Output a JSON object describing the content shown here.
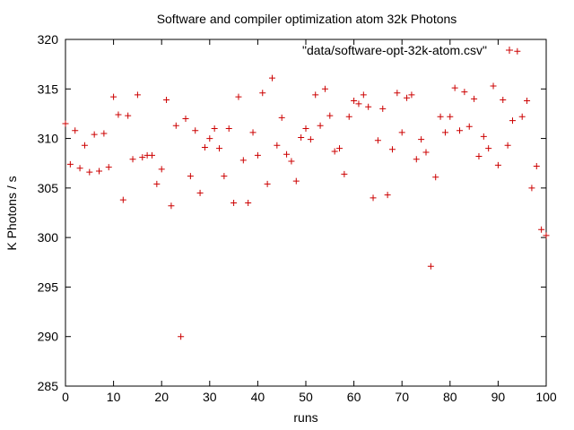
{
  "chart_data": {
    "type": "scatter",
    "title": "Software and compiler optimization atom 32k Photons",
    "xlabel": "runs",
    "ylabel": "K Photons / s",
    "xlim": [
      0,
      100
    ],
    "ylim": [
      285,
      320
    ],
    "x_ticks": [
      "0",
      "10",
      "20",
      "30",
      "40",
      "50",
      "60",
      "70",
      "80",
      "90",
      "100"
    ],
    "y_ticks": [
      "285",
      "290",
      "295",
      "300",
      "305",
      "310",
      "315",
      "320"
    ],
    "legend_position": "top-right",
    "grid": false,
    "colors": {
      "marker": "#cc0000",
      "axis": "#000000",
      "background": "#ffffff"
    },
    "series": [
      {
        "name": "\"data/software-opt-32k-atom.csv\"",
        "points": [
          [
            0,
            311.5
          ],
          [
            1,
            307.4
          ],
          [
            2,
            310.8
          ],
          [
            3,
            307.0
          ],
          [
            4,
            309.3
          ],
          [
            5,
            306.6
          ],
          [
            6,
            310.4
          ],
          [
            7,
            306.7
          ],
          [
            8,
            310.5
          ],
          [
            9,
            307.1
          ],
          [
            10,
            314.2
          ],
          [
            11,
            312.4
          ],
          [
            12,
            303.8
          ],
          [
            13,
            312.3
          ],
          [
            14,
            307.9
          ],
          [
            15,
            314.4
          ],
          [
            16,
            308.1
          ],
          [
            17,
            308.3
          ],
          [
            18,
            308.3
          ],
          [
            19,
            305.4
          ],
          [
            20,
            306.9
          ],
          [
            21,
            313.9
          ],
          [
            22,
            303.2
          ],
          [
            23,
            311.3
          ],
          [
            24,
            290.0
          ],
          [
            25,
            312.0
          ],
          [
            26,
            306.2
          ],
          [
            27,
            310.8
          ],
          [
            28,
            304.5
          ],
          [
            29,
            309.1
          ],
          [
            30,
            310.0
          ],
          [
            31,
            311.0
          ],
          [
            32,
            309.0
          ],
          [
            33,
            306.2
          ],
          [
            34,
            311.0
          ],
          [
            35,
            303.5
          ],
          [
            36,
            314.2
          ],
          [
            37,
            307.8
          ],
          [
            38,
            303.5
          ],
          [
            39,
            310.6
          ],
          [
            40,
            308.3
          ],
          [
            41,
            314.6
          ],
          [
            42,
            305.4
          ],
          [
            43,
            316.1
          ],
          [
            44,
            309.3
          ],
          [
            45,
            312.1
          ],
          [
            46,
            308.4
          ],
          [
            47,
            307.7
          ],
          [
            48,
            305.7
          ],
          [
            49,
            310.1
          ],
          [
            50,
            311.0
          ],
          [
            51,
            309.9
          ],
          [
            52,
            314.4
          ],
          [
            53,
            311.3
          ],
          [
            54,
            315.0
          ],
          [
            55,
            312.3
          ],
          [
            56,
            308.7
          ],
          [
            57,
            309.0
          ],
          [
            58,
            306.4
          ],
          [
            59,
            312.2
          ],
          [
            60,
            313.8
          ],
          [
            61,
            313.5
          ],
          [
            62,
            314.4
          ],
          [
            63,
            313.2
          ],
          [
            64,
            304.0
          ],
          [
            65,
            309.8
          ],
          [
            66,
            313.0
          ],
          [
            67,
            304.3
          ],
          [
            68,
            308.9
          ],
          [
            69,
            314.6
          ],
          [
            70,
            310.6
          ],
          [
            71,
            314.1
          ],
          [
            72,
            314.4
          ],
          [
            73,
            307.9
          ],
          [
            74,
            309.9
          ],
          [
            75,
            308.6
          ],
          [
            76,
            297.1
          ],
          [
            77,
            306.1
          ],
          [
            78,
            312.2
          ],
          [
            79,
            310.6
          ],
          [
            80,
            312.2
          ],
          [
            81,
            315.1
          ],
          [
            82,
            310.8
          ],
          [
            83,
            314.7
          ],
          [
            84,
            311.2
          ],
          [
            85,
            314.0
          ],
          [
            86,
            308.2
          ],
          [
            87,
            310.2
          ],
          [
            88,
            309.0
          ],
          [
            89,
            315.3
          ],
          [
            90,
            307.3
          ],
          [
            91,
            313.9
          ],
          [
            92,
            309.3
          ],
          [
            93,
            311.8
          ],
          [
            94,
            318.8
          ],
          [
            95,
            312.2
          ],
          [
            96,
            313.8
          ],
          [
            97,
            305.0
          ],
          [
            98,
            307.2
          ],
          [
            99,
            300.8
          ],
          [
            100,
            300.2
          ]
        ]
      }
    ]
  }
}
